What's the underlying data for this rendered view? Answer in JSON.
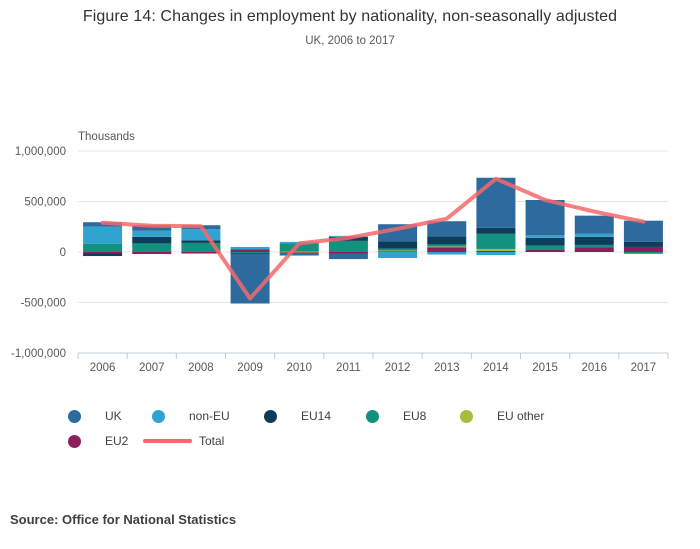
{
  "title": "Figure 14: Changes in employment by nationality, non-seasonally adjusted",
  "subtitle": "UK, 2006 to 2017",
  "source": "Source: Office for National Statistics",
  "axis": {
    "unit_label": "Thousands"
  },
  "legend": {
    "row1": [
      {
        "label": "UK",
        "color": "#2d6b9e",
        "swatch": "circle"
      },
      {
        "label": "non-EU",
        "color": "#30a3d1",
        "swatch": "circle"
      },
      {
        "label": "EU14",
        "color": "#0e3d5c",
        "swatch": "circle"
      },
      {
        "label": "EU8",
        "color": "#13917f",
        "swatch": "circle"
      },
      {
        "label": "EU other",
        "color": "#a8bd3f",
        "swatch": "circle"
      }
    ],
    "row2": [
      {
        "label": "EU2",
        "color": "#8e1d5e",
        "swatch": "circle"
      },
      {
        "label": "Total",
        "color": "#f4696b",
        "swatch": "line"
      }
    ]
  },
  "chart_data": {
    "type": "bar",
    "stacked": true,
    "title": "Figure 14: Changes in employment by nationality, non-seasonally adjusted",
    "subtitle": "UK, 2006 to 2017",
    "ylabel": "Thousands",
    "ylim": [
      -1000000,
      1000000
    ],
    "grid": true,
    "legend_position": "bottom",
    "categories": [
      "2006",
      "2007",
      "2008",
      "2009",
      "2010",
      "2011",
      "2012",
      "2013",
      "2014",
      "2015",
      "2016",
      "2017"
    ],
    "y_ticks": [
      {
        "v": 1000000,
        "label": "1,000,000"
      },
      {
        "v": 500000,
        "label": "500,000"
      },
      {
        "v": 0,
        "label": "0"
      },
      {
        "v": -500000,
        "label": "-500,000"
      },
      {
        "v": -1000000,
        "label": "-1,000,000"
      }
    ],
    "stack_order": [
      "EU2",
      "EU other",
      "EU8",
      "EU14",
      "non-EU",
      "UK"
    ],
    "series": [
      {
        "name": "UK",
        "color": "#2d6b9e",
        "values": [
          45000,
          55000,
          40000,
          -495000,
          -25000,
          -55000,
          170000,
          150000,
          495000,
          350000,
          180000,
          210000
        ]
      },
      {
        "name": "non-EU",
        "color": "#30a3d1",
        "values": [
          170000,
          60000,
          110000,
          25000,
          15000,
          10000,
          -60000,
          -25000,
          -30000,
          25000,
          30000,
          -10000
        ]
      },
      {
        "name": "EU14",
        "color": "#0e3d5c",
        "values": [
          -25000,
          65000,
          25000,
          -5000,
          0,
          40000,
          70000,
          80000,
          60000,
          75000,
          80000,
          50000
        ]
      },
      {
        "name": "EU8",
        "color": "#13917f",
        "values": [
          80000,
          85000,
          90000,
          -10000,
          80000,
          110000,
          20000,
          20000,
          150000,
          45000,
          25000,
          -10000
        ]
      },
      {
        "name": "EU other",
        "color": "#a8bd3f",
        "values": [
          0,
          0,
          0,
          0,
          5000,
          0,
          5000,
          5000,
          20000,
          0,
          0,
          0
        ]
      },
      {
        "name": "EU2",
        "color": "#8e1d5e",
        "values": [
          -15000,
          -20000,
          -15000,
          25000,
          -10000,
          -15000,
          10000,
          50000,
          10000,
          20000,
          45000,
          50000
        ]
      }
    ],
    "line_series": {
      "name": "Total",
      "color": "#f4696b",
      "values": [
        290000,
        260000,
        255000,
        -460000,
        85000,
        140000,
        230000,
        330000,
        725000,
        515000,
        400000,
        300000
      ]
    },
    "colors": {
      "gridline": "#e6e6e6",
      "axis_line": "#c0ccd6",
      "axis_text": "#595959",
      "title_text": "#333333",
      "source_text": "#404040"
    }
  }
}
